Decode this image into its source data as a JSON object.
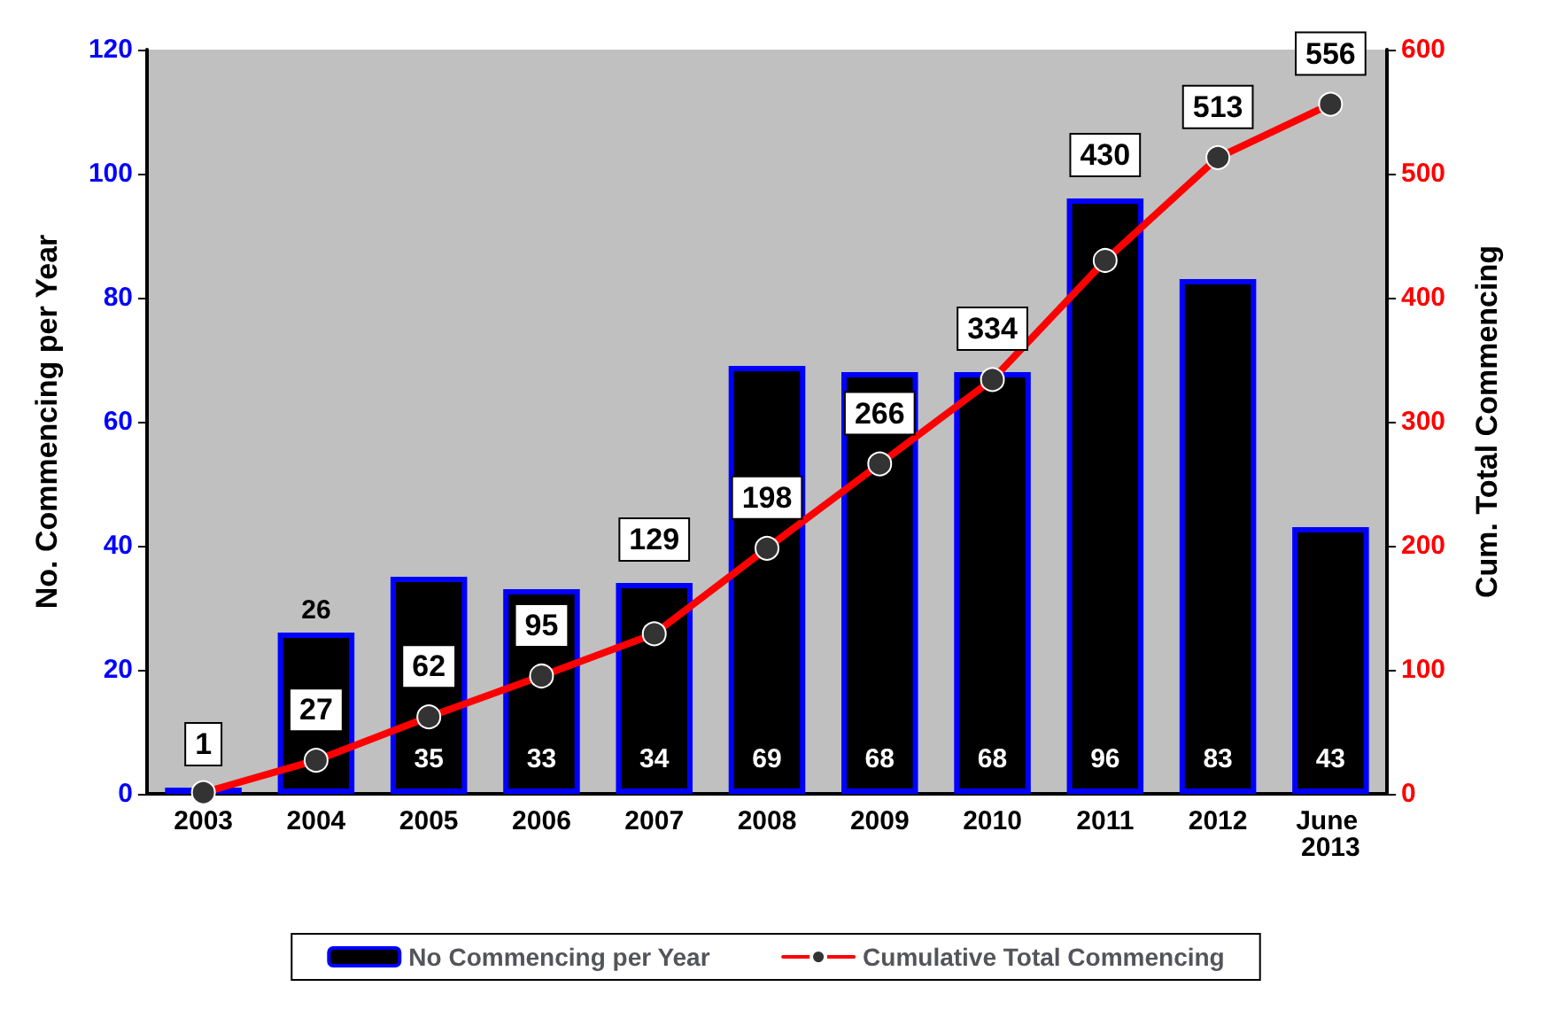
{
  "chart_data": {
    "type": "bar",
    "categories": [
      "2003",
      "2004",
      "2005",
      "2006",
      "2007",
      "2008",
      "2009",
      "2010",
      "2011",
      "2012",
      "June 2013"
    ],
    "ylabel": "No. Commencing per Year",
    "y2label": "Cum. Total Commencing",
    "ylim": [
      0,
      120
    ],
    "yticks": [
      0,
      20,
      40,
      60,
      80,
      100,
      120
    ],
    "y2lim": [
      0,
      600
    ],
    "y2ticks": [
      0,
      100,
      200,
      300,
      400,
      500,
      600
    ],
    "series": [
      {
        "name": "No Commencing per Year",
        "type": "bar",
        "color": "#000000",
        "values": [
          1,
          26,
          35,
          33,
          34,
          69,
          68,
          68,
          96,
          83,
          43
        ],
        "value_labels": [
          null,
          "26",
          "35",
          "33",
          "34",
          "69",
          "68",
          "68",
          "96",
          "83",
          "43"
        ]
      },
      {
        "name": "Cumulative Total Commencing",
        "type": "line",
        "axis": "y2",
        "color": "#ff0000",
        "marker": "circle",
        "values": [
          1,
          27,
          62,
          95,
          129,
          198,
          266,
          334,
          430,
          513,
          556
        ],
        "value_labels": [
          "1",
          "27",
          "62",
          "95",
          "129",
          "198",
          "266",
          "334",
          "430",
          "513",
          "556"
        ]
      }
    ],
    "grid": false,
    "legend": "bottom"
  }
}
